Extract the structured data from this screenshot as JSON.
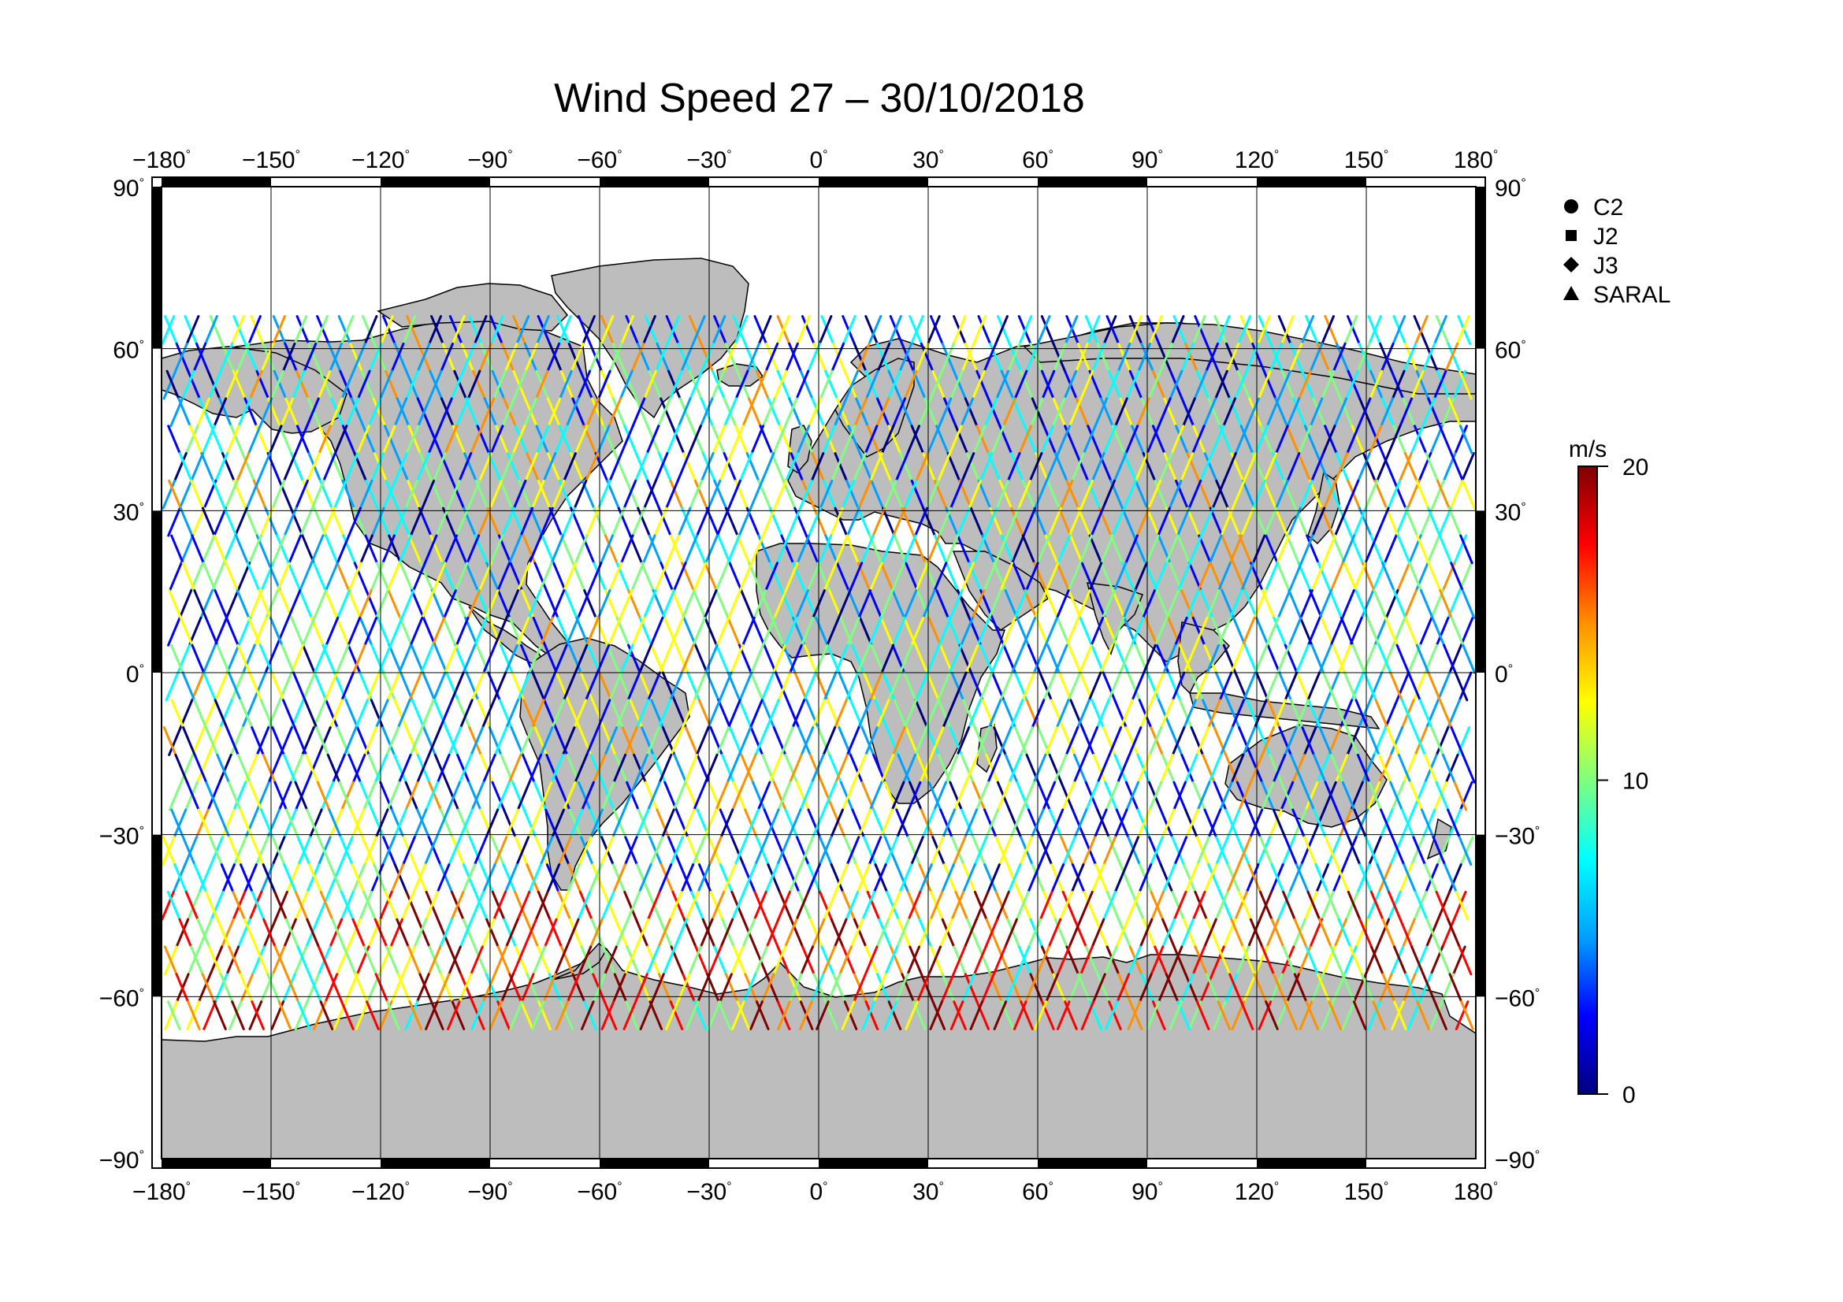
{
  "title": "Wind Speed 27 – 30/10/2018",
  "map": {
    "projection": "equirectangular",
    "lon_range": [
      -180,
      180
    ],
    "lat_range": [
      -90,
      90
    ],
    "lon_ticks": [
      "−180",
      "−150",
      "−120",
      "−90",
      "−60",
      "−30",
      "0",
      "30",
      "60",
      "90",
      "120",
      "150",
      "180"
    ],
    "lat_ticks_left": [
      "90",
      "60",
      "30",
      "0",
      "−30",
      "−60",
      "−90"
    ],
    "lat_ticks_right": [
      "90",
      "60",
      "30",
      "0",
      "−30",
      "−60",
      "−90"
    ],
    "degree_symbol": "°",
    "grid": true,
    "land_color": "#bdbdbd",
    "ocean_color": "#ffffff",
    "frame_style": "alternating black/white degree bars"
  },
  "legend": {
    "position": "right, top",
    "entries": [
      {
        "label": "C2",
        "symbol": "circle"
      },
      {
        "label": "J2",
        "symbol": "square"
      },
      {
        "label": "J3",
        "symbol": "diamond"
      },
      {
        "label": "SARAL",
        "symbol": "triangle"
      }
    ]
  },
  "colorbar": {
    "unit": "m/s",
    "min": 0,
    "max": 20,
    "tick_labels": [
      "20",
      "10",
      "0"
    ],
    "colormap": [
      "#00007f",
      "#0000ff",
      "#00a0ff",
      "#00ffff",
      "#7fff7f",
      "#ffff00",
      "#ff9000",
      "#ff0000",
      "#7f0000"
    ]
  }
}
